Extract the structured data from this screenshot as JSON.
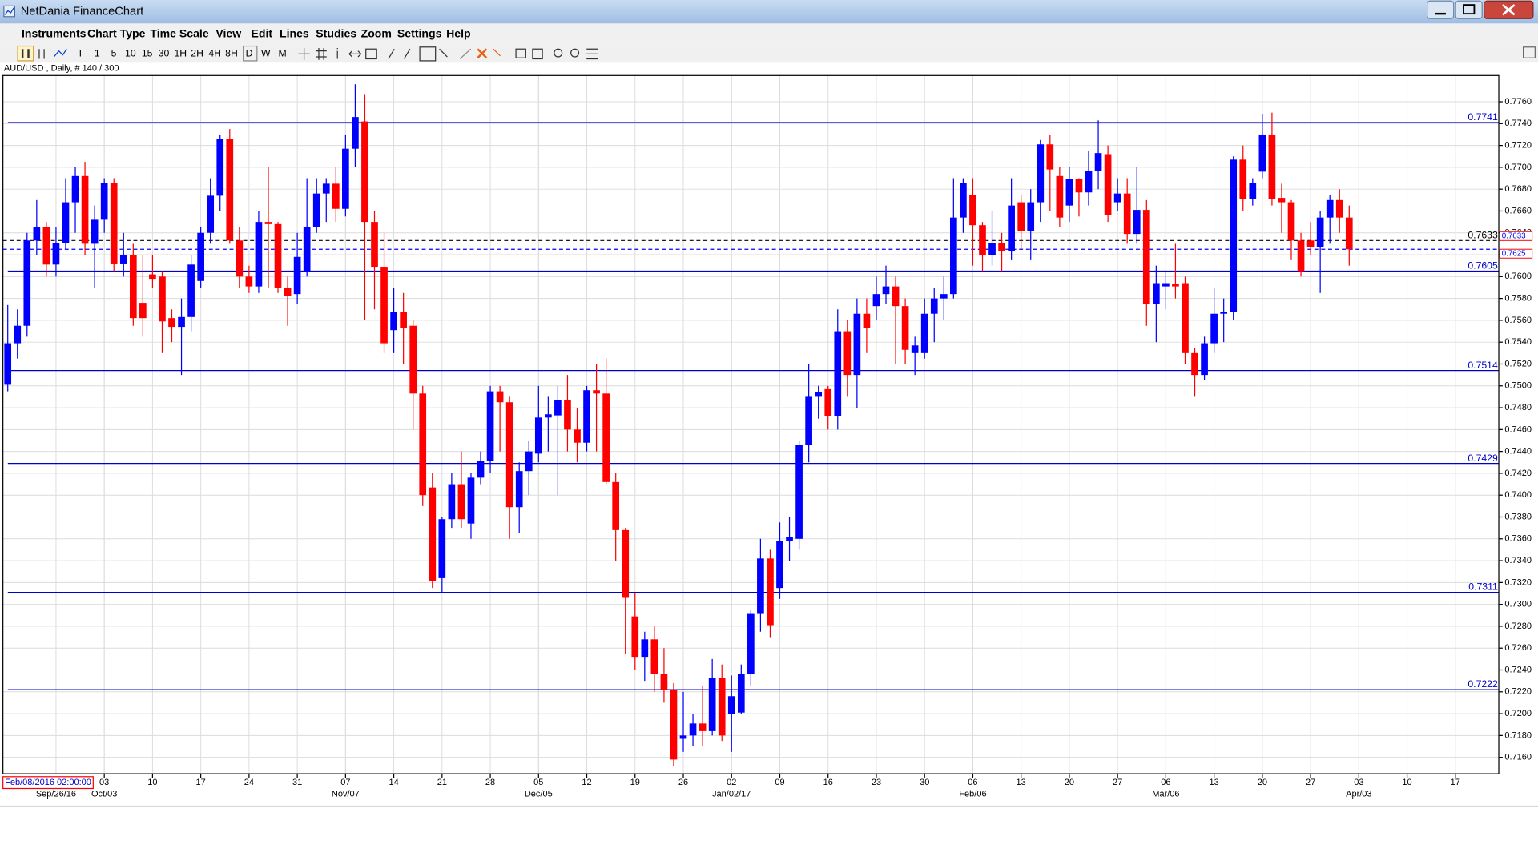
{
  "window": {
    "title": "NetDania FinanceChart"
  },
  "menu": [
    "Instruments",
    "Chart Type",
    "Time Scale",
    "View",
    "Edit",
    "Lines",
    "Studies",
    "Zoom",
    "Settings",
    "Help"
  ],
  "toolbar": [
    "T",
    "1",
    "5",
    "10",
    "15",
    "30",
    "1H",
    "2H",
    "4H",
    "8H",
    "D",
    "W",
    "M"
  ],
  "symbol_info": "AUD/USD , Daily, # 140 / 300",
  "chart_data": {
    "type": "candlestick",
    "x": [
      "2016-09-19",
      "2016-09-20",
      "2016-09-21",
      "2016-09-22",
      "2016-09-23",
      "2016-09-26",
      "2016-09-27",
      "2016-09-28",
      "2016-09-29",
      "2016-09-30",
      "2016-10-03",
      "2016-10-04",
      "2016-10-05",
      "2016-10-06",
      "2016-10-07",
      "2016-10-10",
      "2016-10-11",
      "2016-10-12",
      "2016-10-13",
      "2016-10-14",
      "2016-10-17",
      "2016-10-18",
      "2016-10-19",
      "2016-10-20",
      "2016-10-21",
      "2016-10-24",
      "2016-10-25",
      "2016-10-26",
      "2016-10-27",
      "2016-10-28",
      "2016-10-31",
      "2016-11-01",
      "2016-11-02",
      "2016-11-03",
      "2016-11-04",
      "2016-11-07",
      "2016-11-08",
      "2016-11-09",
      "2016-11-10",
      "2016-11-11",
      "2016-11-14",
      "2016-11-15",
      "2016-11-16",
      "2016-11-17",
      "2016-11-18",
      "2016-11-21",
      "2016-11-22",
      "2016-11-23",
      "2016-11-24",
      "2016-11-25",
      "2016-11-28",
      "2016-11-29",
      "2016-11-30",
      "2016-12-01",
      "2016-12-02",
      "2016-12-05",
      "2016-12-06",
      "2016-12-07",
      "2016-12-08",
      "2016-12-09",
      "2016-12-12",
      "2016-12-13",
      "2016-12-14",
      "2016-12-15",
      "2016-12-16",
      "2016-12-19",
      "2016-12-20",
      "2016-12-21",
      "2016-12-22",
      "2016-12-23",
      "2016-12-26",
      "2016-12-27",
      "2016-12-28",
      "2016-12-29",
      "2016-12-30",
      "2017-01-02",
      "2017-01-03",
      "2017-01-04",
      "2017-01-05",
      "2017-01-06",
      "2017-01-09",
      "2017-01-10",
      "2017-01-11",
      "2017-01-12",
      "2017-01-13",
      "2017-01-16",
      "2017-01-17",
      "2017-01-18",
      "2017-01-19",
      "2017-01-20",
      "2017-01-23",
      "2017-01-24",
      "2017-01-25",
      "2017-01-26",
      "2017-01-27",
      "2017-01-30",
      "2017-01-31",
      "2017-02-01",
      "2017-02-02",
      "2017-02-03",
      "2017-02-06",
      "2017-02-07",
      "2017-02-08",
      "2017-02-09",
      "2017-02-10",
      "2017-02-13",
      "2017-02-14",
      "2017-02-15",
      "2017-02-16",
      "2017-02-17",
      "2017-02-20",
      "2017-02-21",
      "2017-02-22",
      "2017-02-23",
      "2017-02-24",
      "2017-02-27",
      "2017-02-28",
      "2017-03-01",
      "2017-03-02",
      "2017-03-03",
      "2017-03-06",
      "2017-03-07",
      "2017-03-08",
      "2017-03-09",
      "2017-03-10",
      "2017-03-13",
      "2017-03-14",
      "2017-03-15",
      "2017-03-16",
      "2017-03-17",
      "2017-03-20",
      "2017-03-21",
      "2017-03-22",
      "2017-03-23",
      "2017-03-24",
      "2017-03-27",
      "2017-03-28",
      "2017-03-29",
      "2017-03-30",
      "2017-03-31"
    ],
    "open": [
      0.7501,
      0.7539,
      0.7555,
      0.7633,
      0.7645,
      0.7611,
      0.7631,
      0.7668,
      0.7692,
      0.763,
      0.7652,
      0.7686,
      0.7612,
      0.762,
      0.7576,
      0.7602,
      0.76,
      0.7562,
      0.7554,
      0.7563,
      0.7596,
      0.764,
      0.7674,
      0.7726,
      0.7633,
      0.76,
      0.7591,
      0.765,
      0.7648,
      0.759,
      0.7584,
      0.7605,
      0.7645,
      0.7676,
      0.7685,
      0.7662,
      0.7717,
      0.7742,
      0.765,
      0.7609,
      0.7551,
      0.7568,
      0.7555,
      0.7493,
      0.7407,
      0.7324,
      0.7378,
      0.741,
      0.7374,
      0.7416,
      0.7431,
      0.7495,
      0.7485,
      0.7389,
      0.7422,
      0.7438,
      0.7471,
      0.7473,
      0.7487,
      0.746,
      0.7448,
      0.7496,
      0.7493,
      0.7412,
      0.7368,
      0.7289,
      0.7252,
      0.7268,
      0.7236,
      0.7222,
      0.7177,
      0.718,
      0.7191,
      0.7184,
      0.7233,
      0.72,
      0.7201,
      0.7236,
      0.7292,
      0.7342,
      0.7315,
      0.7358,
      0.736,
      0.7446,
      0.749,
      0.7497,
      0.7472,
      0.755,
      0.751,
      0.7566,
      0.7573,
      0.7584,
      0.7591,
      0.7573,
      0.753,
      0.753,
      0.7566,
      0.758,
      0.7584,
      0.7654,
      0.7675,
      0.7647,
      0.762,
      0.7631,
      0.7623,
      0.7668,
      0.7642,
      0.7668,
      0.7721,
      0.7692,
      0.7665,
      0.7689,
      0.7677,
      0.7697,
      0.7712,
      0.7668,
      0.7676,
      0.7639,
      0.7661,
      0.7575,
      0.7591,
      0.7593,
      0.7594,
      0.753,
      0.751,
      0.7539,
      0.7566,
      0.7568,
      0.7707,
      0.7671,
      0.7696,
      0.773,
      0.7672,
      0.7668,
      0.7633,
      0.7633,
      0.7627,
      0.7654,
      0.767,
      0.7654
    ],
    "high": [
      0.7574,
      0.757,
      0.764,
      0.767,
      0.765,
      0.7645,
      0.769,
      0.77,
      0.7705,
      0.7665,
      0.769,
      0.769,
      0.764,
      0.763,
      0.762,
      0.762,
      0.7605,
      0.757,
      0.758,
      0.762,
      0.7645,
      0.769,
      0.773,
      0.7735,
      0.7645,
      0.761,
      0.766,
      0.77,
      0.765,
      0.76,
      0.764,
      0.769,
      0.769,
      0.769,
      0.77,
      0.773,
      0.7776,
      0.7767,
      0.766,
      0.764,
      0.759,
      0.7585,
      0.756,
      0.75,
      0.742,
      0.738,
      0.742,
      0.744,
      0.742,
      0.744,
      0.75,
      0.75,
      0.749,
      0.743,
      0.745,
      0.75,
      0.749,
      0.75,
      0.751,
      0.748,
      0.75,
      0.752,
      0.7525,
      0.742,
      0.737,
      0.731,
      0.7275,
      0.728,
      0.726,
      0.7228,
      0.722,
      0.72,
      0.7225,
      0.725,
      0.7245,
      0.7235,
      0.7245,
      0.7295,
      0.736,
      0.735,
      0.7375,
      0.738,
      0.745,
      0.752,
      0.75,
      0.75,
      0.757,
      0.756,
      0.758,
      0.758,
      0.76,
      0.761,
      0.76,
      0.758,
      0.7545,
      0.758,
      0.759,
      0.76,
      0.769,
      0.769,
      0.769,
      0.765,
      0.766,
      0.764,
      0.769,
      0.7675,
      0.768,
      0.7725,
      0.773,
      0.77,
      0.77,
      0.769,
      0.7715,
      0.7743,
      0.772,
      0.769,
      0.769,
      0.77,
      0.767,
      0.761,
      0.7605,
      0.763,
      0.76,
      0.7535,
      0.7545,
      0.759,
      0.758,
      0.771,
      0.772,
      0.769,
      0.7749,
      0.775,
      0.7685,
      0.767,
      0.764,
      0.765,
      0.766,
      0.7675,
      0.768,
      0.7665
    ],
    "low": [
      0.7495,
      0.7525,
      0.7545,
      0.762,
      0.76,
      0.76,
      0.7625,
      0.764,
      0.762,
      0.759,
      0.764,
      0.7605,
      0.76,
      0.7555,
      0.7545,
      0.759,
      0.753,
      0.754,
      0.751,
      0.755,
      0.759,
      0.763,
      0.766,
      0.763,
      0.759,
      0.7585,
      0.7585,
      0.759,
      0.7585,
      0.7555,
      0.7575,
      0.76,
      0.764,
      0.765,
      0.765,
      0.7655,
      0.77,
      0.756,
      0.757,
      0.753,
      0.753,
      0.752,
      0.746,
      0.739,
      0.7315,
      0.731,
      0.737,
      0.737,
      0.736,
      0.741,
      0.742,
      0.744,
      0.736,
      0.7365,
      0.74,
      0.743,
      0.744,
      0.74,
      0.744,
      0.743,
      0.744,
      0.744,
      0.741,
      0.734,
      0.7255,
      0.724,
      0.723,
      0.722,
      0.721,
      0.7152,
      0.7165,
      0.717,
      0.717,
      0.718,
      0.7175,
      0.7165,
      0.72,
      0.7225,
      0.7275,
      0.727,
      0.7305,
      0.734,
      0.735,
      0.743,
      0.747,
      0.746,
      0.746,
      0.749,
      0.748,
      0.753,
      0.756,
      0.7575,
      0.752,
      0.752,
      0.751,
      0.7525,
      0.754,
      0.756,
      0.758,
      0.764,
      0.761,
      0.7605,
      0.761,
      0.7605,
      0.7615,
      0.7625,
      0.7615,
      0.765,
      0.766,
      0.7645,
      0.765,
      0.7655,
      0.7665,
      0.768,
      0.765,
      0.766,
      0.763,
      0.763,
      0.7555,
      0.754,
      0.757,
      0.758,
      0.752,
      0.749,
      0.7505,
      0.753,
      0.754,
      0.756,
      0.766,
      0.7665,
      0.769,
      0.7665,
      0.764,
      0.7615,
      0.76,
      0.762,
      0.7585,
      0.763,
      0.764,
      0.761
    ],
    "close": [
      0.7539,
      0.7555,
      0.7633,
      0.7645,
      0.7611,
      0.7631,
      0.7668,
      0.7692,
      0.763,
      0.7652,
      0.7686,
      0.7612,
      0.762,
      0.7562,
      0.7562,
      0.7598,
      0.7559,
      0.7554,
      0.7563,
      0.7611,
      0.764,
      0.7674,
      0.7726,
      0.7633,
      0.76,
      0.7591,
      0.765,
      0.7648,
      0.759,
      0.7582,
      0.7618,
      0.7645,
      0.7676,
      0.7685,
      0.7662,
      0.7717,
      0.7746,
      0.765,
      0.7609,
      0.7539,
      0.7568,
      0.7553,
      0.7493,
      0.74,
      0.7321,
      0.7378,
      0.741,
      0.7378,
      0.7416,
      0.7431,
      0.7495,
      0.7485,
      0.7389,
      0.7422,
      0.744,
      0.7471,
      0.7474,
      0.7487,
      0.746,
      0.7448,
      0.7496,
      0.7493,
      0.7412,
      0.7368,
      0.7306,
      0.7252,
      0.7268,
      0.7236,
      0.7222,
      0.7158,
      0.718,
      0.7191,
      0.7184,
      0.7233,
      0.718,
      0.7216,
      0.7236,
      0.7292,
      0.7342,
      0.7281,
      0.7358,
      0.7362,
      0.7446,
      0.749,
      0.7494,
      0.7472,
      0.755,
      0.751,
      0.7566,
      0.7553,
      0.7584,
      0.7591,
      0.7573,
      0.7533,
      0.7537,
      0.7566,
      0.758,
      0.7584,
      0.7654,
      0.7686,
      0.7647,
      0.762,
      0.7631,
      0.7623,
      0.7665,
      0.7642,
      0.7668,
      0.7721,
      0.7698,
      0.7654,
      0.7689,
      0.7677,
      0.7697,
      0.7713,
      0.7656,
      0.7676,
      0.7639,
      0.7661,
      0.7575,
      0.7594,
      0.7594,
      0.7591,
      0.753,
      0.751,
      0.7539,
      0.7566,
      0.7568,
      0.7707,
      0.7671,
      0.7686,
      0.773,
      0.7671,
      0.7668,
      0.7633,
      0.7605,
      0.7627,
      0.7654,
      0.767,
      0.7654,
      0.7625
    ],
    "up_color": "#0000ff",
    "down_color": "#ff0000",
    "xlim": [
      "2016-09-19",
      "2017-04-21"
    ],
    "xticks": [
      {
        "value": "2016-10-03",
        "label": "03"
      },
      {
        "value": "2016-10-10",
        "label": "10"
      },
      {
        "value": "2016-10-17",
        "label": "17"
      },
      {
        "value": "2016-10-24",
        "label": "24"
      },
      {
        "value": "2016-10-31",
        "label": "31"
      },
      {
        "value": "2016-11-07",
        "label": "07"
      },
      {
        "value": "2016-11-14",
        "label": "14"
      },
      {
        "value": "2016-11-21",
        "label": "21"
      },
      {
        "value": "2016-11-28",
        "label": "28"
      },
      {
        "value": "2016-12-05",
        "label": "05"
      },
      {
        "value": "2016-12-12",
        "label": "12"
      },
      {
        "value": "2016-12-19",
        "label": "19"
      },
      {
        "value": "2016-12-26",
        "label": "26"
      },
      {
        "value": "2017-01-02",
        "label": "02"
      },
      {
        "value": "2017-01-09",
        "label": "09"
      },
      {
        "value": "2017-01-16",
        "label": "16"
      },
      {
        "value": "2017-01-23",
        "label": "23"
      },
      {
        "value": "2017-01-30",
        "label": "30"
      },
      {
        "value": "2017-02-06",
        "label": "06"
      },
      {
        "value": "2017-02-13",
        "label": "13"
      },
      {
        "value": "2017-02-20",
        "label": "20"
      },
      {
        "value": "2017-02-27",
        "label": "27"
      },
      {
        "value": "2017-03-06",
        "label": "06"
      },
      {
        "value": "2017-03-13",
        "label": "13"
      },
      {
        "value": "2017-03-20",
        "label": "20"
      },
      {
        "value": "2017-03-27",
        "label": "27"
      },
      {
        "value": "2017-04-03",
        "label": "03"
      },
      {
        "value": "2017-04-10",
        "label": "10"
      },
      {
        "value": "2017-04-17",
        "label": "17"
      }
    ],
    "xticks_major": [
      {
        "value": "2016-09-26",
        "label": "Sep/26/16"
      },
      {
        "value": "2016-10-03",
        "label": "Oct/03"
      },
      {
        "value": "2016-11-07",
        "label": "Nov/07"
      },
      {
        "value": "2016-12-05",
        "label": "Dec/05"
      },
      {
        "value": "2017-01-02",
        "label": "Jan/02/17"
      },
      {
        "value": "2017-02-06",
        "label": "Feb/06"
      },
      {
        "value": "2017-03-06",
        "label": "Mar/06"
      },
      {
        "value": "2017-04-03",
        "label": "Apr/03"
      }
    ],
    "ylim": [
      0.7145,
      0.7784
    ],
    "yticks": [
      {
        "value": 0.716,
        "label": "0.7160"
      },
      {
        "value": 0.718,
        "label": "0.7180"
      },
      {
        "value": 0.72,
        "label": "0.7200"
      },
      {
        "value": 0.722,
        "label": "0.7220"
      },
      {
        "value": 0.724,
        "label": "0.7240"
      },
      {
        "value": 0.726,
        "label": "0.7260"
      },
      {
        "value": 0.728,
        "label": "0.7280"
      },
      {
        "value": 0.73,
        "label": "0.7300"
      },
      {
        "value": 0.732,
        "label": "0.7320"
      },
      {
        "value": 0.734,
        "label": "0.7340"
      },
      {
        "value": 0.736,
        "label": "0.7360"
      },
      {
        "value": 0.738,
        "label": "0.7380"
      },
      {
        "value": 0.74,
        "label": "0.7400"
      },
      {
        "value": 0.742,
        "label": "0.7420"
      },
      {
        "value": 0.744,
        "label": "0.7440"
      },
      {
        "value": 0.746,
        "label": "0.7460"
      },
      {
        "value": 0.748,
        "label": "0.7480"
      },
      {
        "value": 0.75,
        "label": "0.7500"
      },
      {
        "value": 0.752,
        "label": "0.7520"
      },
      {
        "value": 0.754,
        "label": "0.7540"
      },
      {
        "value": 0.756,
        "label": "0.7560"
      },
      {
        "value": 0.758,
        "label": "0.7580"
      },
      {
        "value": 0.76,
        "label": "0.7600"
      },
      {
        "value": 0.762,
        "label": "0.7620"
      },
      {
        "value": 0.764,
        "label": "0.7640"
      },
      {
        "value": 0.766,
        "label": "0.7660"
      },
      {
        "value": 0.768,
        "label": "0.7680"
      },
      {
        "value": 0.77,
        "label": "0.7700"
      },
      {
        "value": 0.772,
        "label": "0.7720"
      },
      {
        "value": 0.774,
        "label": "0.7740"
      },
      {
        "value": 0.776,
        "label": "0.7760"
      }
    ],
    "grid": true,
    "levels": [
      0.7741,
      0.7605,
      0.7514,
      0.7429,
      0.7311,
      0.7222
    ],
    "level_color": "#0000cc",
    "dashed_lines": [
      {
        "value": 0.7633,
        "color": "#000000"
      },
      {
        "value": 0.7625,
        "color": "#0000ff"
      }
    ],
    "cursor_label": "Feb/08/2016 02:00:00"
  }
}
